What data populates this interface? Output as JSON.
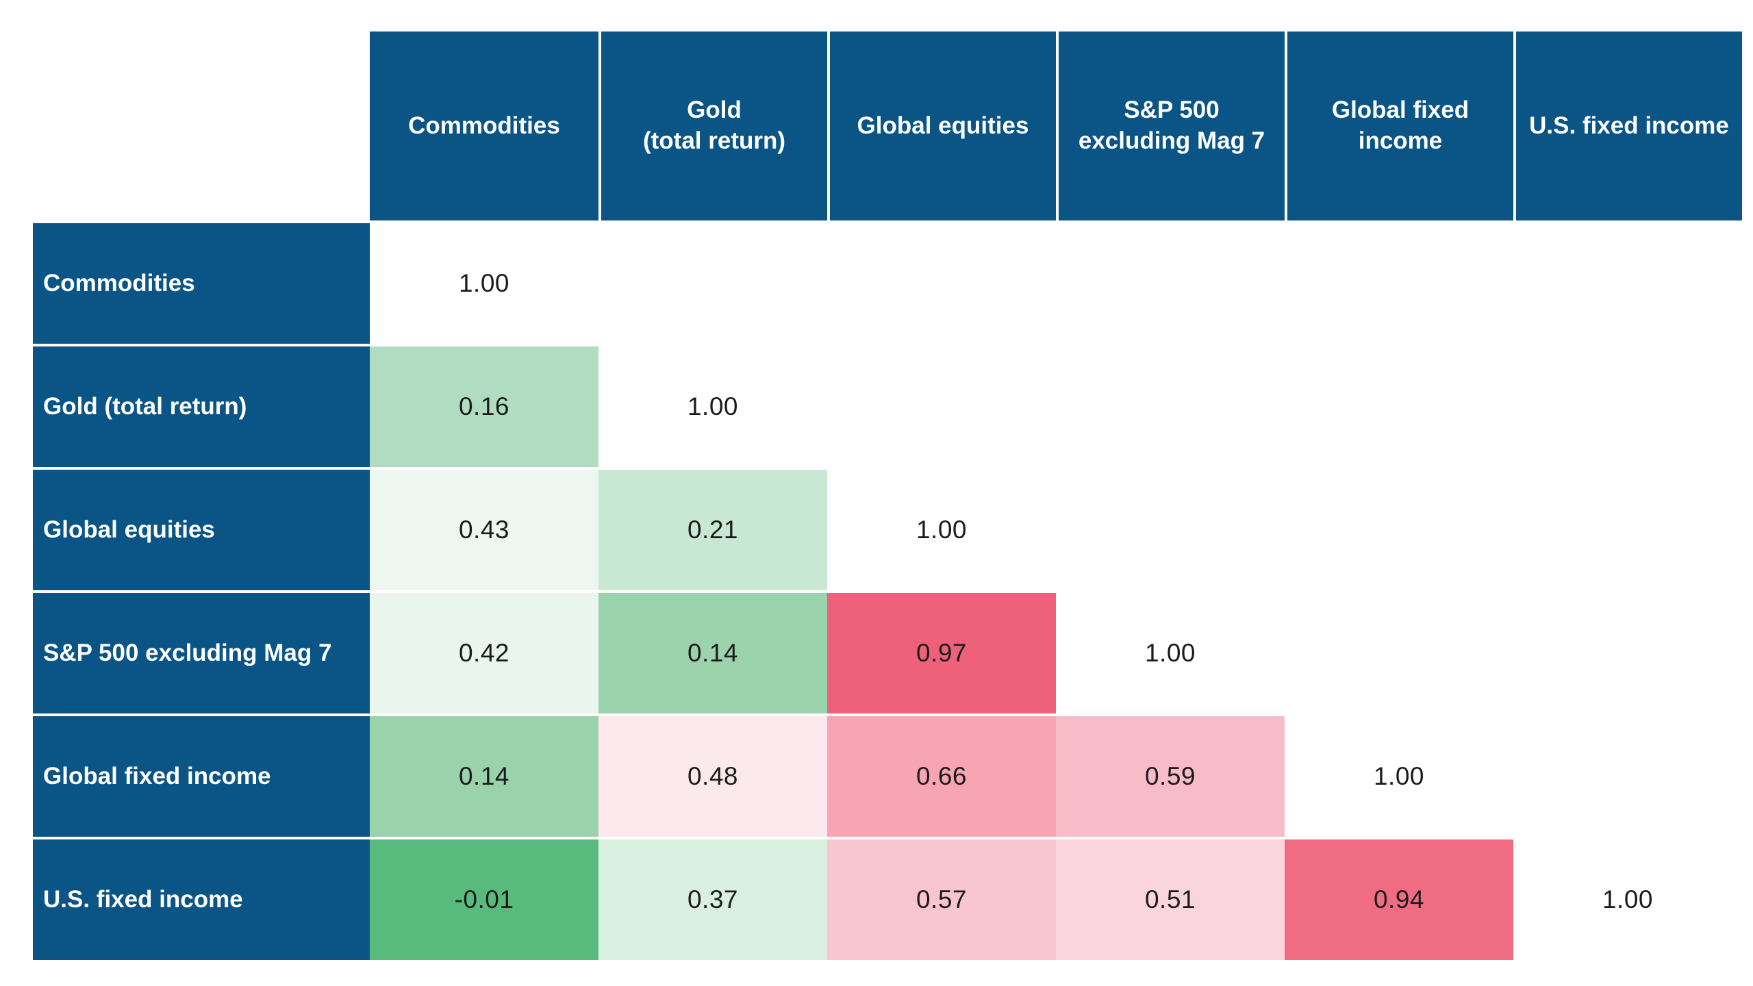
{
  "colors": {
    "header_blue": "#0a5486",
    "page_bg": "#ffffff",
    "value_text": "#1b1b1b",
    "scale_green_strong": "#58bb7d",
    "scale_mid_white": "#ffffff",
    "scale_red_strong": "#ef617a"
  },
  "table": {
    "columns": [
      {
        "label": "Commodities"
      },
      {
        "label": "Gold\n(total return)"
      },
      {
        "label": "Global equities"
      },
      {
        "label": "S&P 500\nexcluding Mag 7"
      },
      {
        "label": "Global fixed\nincome"
      },
      {
        "label": "U.S. fixed income"
      }
    ],
    "rows": [
      {
        "label": "Commodities",
        "cells": [
          {
            "value": "1.00",
            "bg": "#ffffff"
          }
        ]
      },
      {
        "label": "Gold (total return)",
        "cells": [
          {
            "value": "0.16",
            "bg": "#b0ddc2"
          },
          {
            "value": "1.00",
            "bg": "#ffffff"
          }
        ]
      },
      {
        "label": "Global equities",
        "cells": [
          {
            "value": "0.43",
            "bg": "#edf7f0"
          },
          {
            "value": "0.21",
            "bg": "#c9e8d3"
          },
          {
            "value": "1.00",
            "bg": "#ffffff"
          }
        ]
      },
      {
        "label": "S&P 500 excluding Mag 7",
        "cells": [
          {
            "value": "0.42",
            "bg": "#eaf5ed"
          },
          {
            "value": "0.14",
            "bg": "#9ad3ac"
          },
          {
            "value": "0.97",
            "bg": "#ef617a"
          },
          {
            "value": "1.00",
            "bg": "#ffffff"
          }
        ]
      },
      {
        "label": "Global fixed income",
        "cells": [
          {
            "value": "0.14",
            "bg": "#99d2ab"
          },
          {
            "value": "0.48",
            "bg": "#fce9ed"
          },
          {
            "value": "0.66",
            "bg": "#f7a5b3"
          },
          {
            "value": "0.59",
            "bg": "#f8bcc8"
          },
          {
            "value": "1.00",
            "bg": "#ffffff"
          }
        ]
      },
      {
        "label": "U.S. fixed income",
        "cells": [
          {
            "value": "-0.01",
            "bg": "#58bb7d"
          },
          {
            "value": "0.37",
            "bg": "#d9efe0"
          },
          {
            "value": "0.57",
            "bg": "#f9c5cf"
          },
          {
            "value": "0.51",
            "bg": "#fad5dd"
          },
          {
            "value": "0.94",
            "bg": "#ef6c83"
          },
          {
            "value": "1.00",
            "bg": "#ffffff"
          }
        ]
      }
    ]
  },
  "chart_data": {
    "type": "heatmap",
    "title": "",
    "categories": [
      "Commodities",
      "Gold (total return)",
      "Global equities",
      "S&P 500 excluding Mag 7",
      "Global fixed income",
      "U.S. fixed income"
    ],
    "matrix_lower_triangle": [
      [
        1.0
      ],
      [
        0.16,
        1.0
      ],
      [
        0.43,
        0.21,
        1.0
      ],
      [
        0.42,
        0.14,
        0.97,
        1.0
      ],
      [
        0.14,
        0.48,
        0.66,
        0.59,
        1.0
      ],
      [
        -0.01,
        0.37,
        0.57,
        0.51,
        0.94,
        1.0
      ]
    ],
    "value_range": [
      -1,
      1
    ],
    "layout": "lower-triangle correlation matrix; diagonal 1.00 cells on white; green = low/negative correlation, pink/red = high correlation; no legend shown"
  }
}
